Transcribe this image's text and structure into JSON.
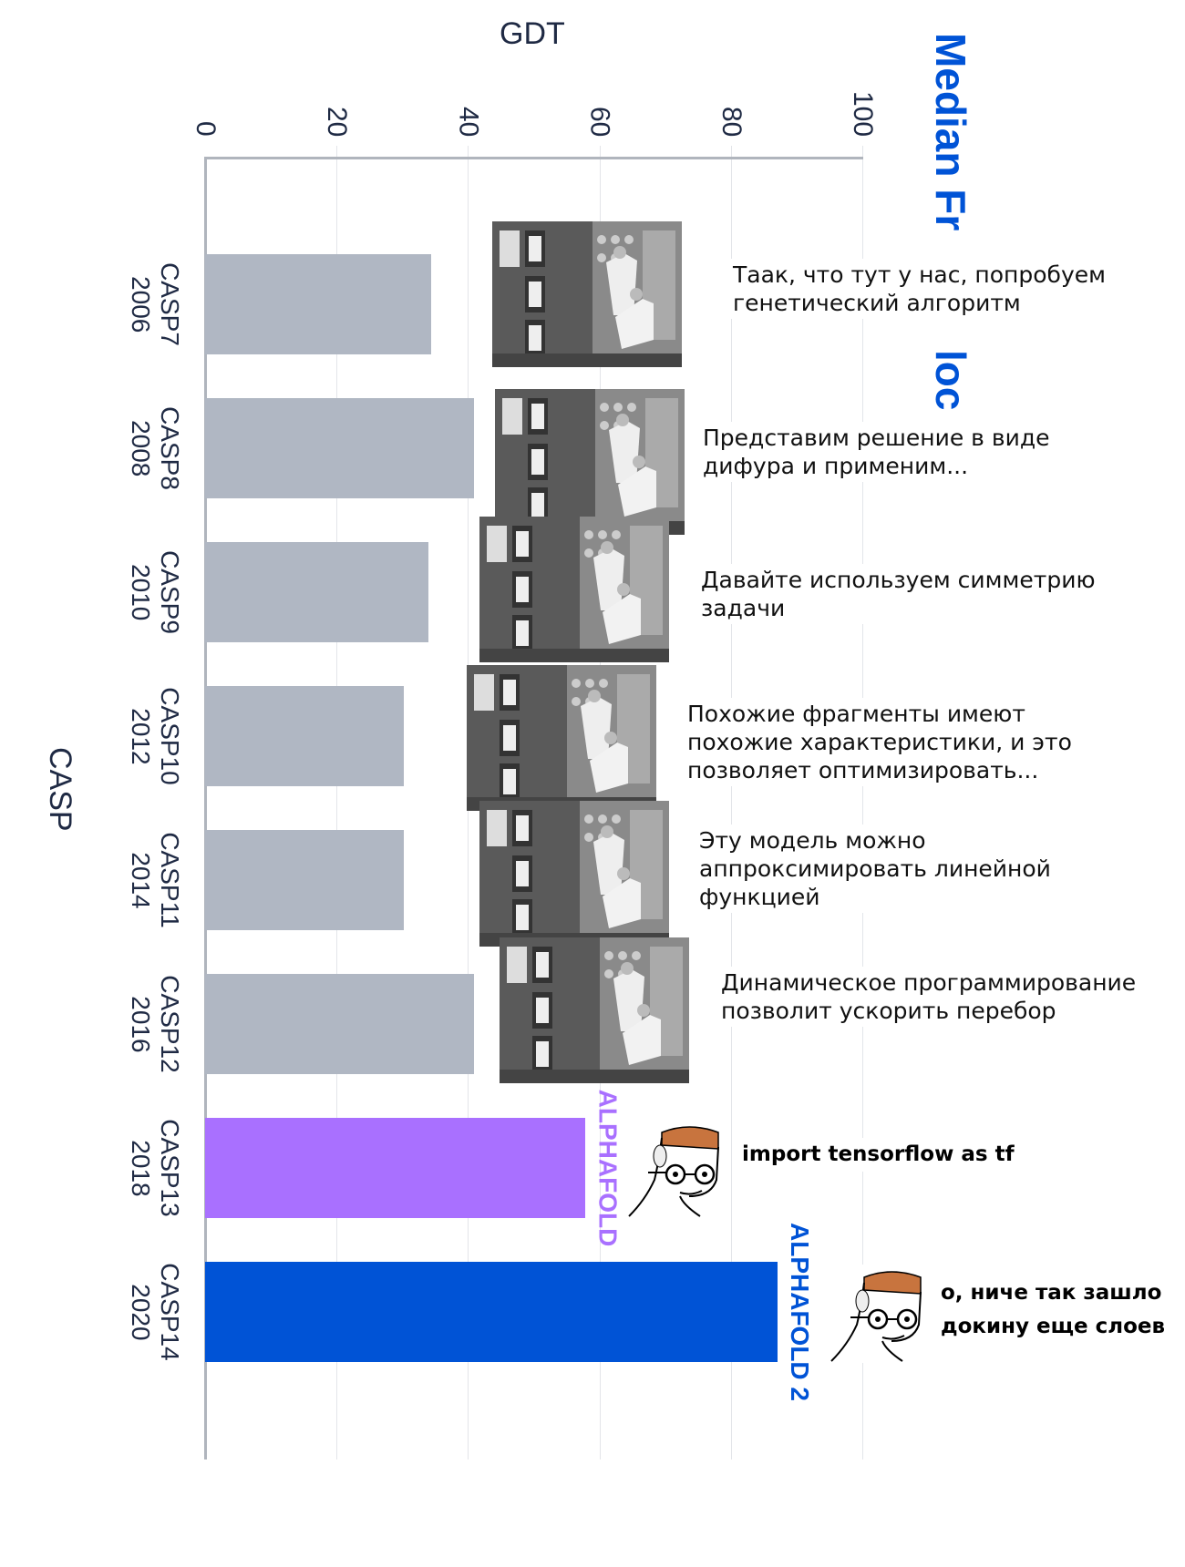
{
  "chart_data": {
    "type": "bar",
    "orientation": "horizontal",
    "title_fragments": [
      "Median Fr",
      "loc"
    ],
    "xlabel": "GDT",
    "ylabel": "CASP",
    "xlim": [
      0,
      100
    ],
    "xticks": [
      "0",
      "20",
      "40",
      "60",
      "80",
      "100"
    ],
    "grid": true,
    "categories": [
      {
        "name": "CASP7",
        "year": "2006"
      },
      {
        "name": "CASP8",
        "year": "2008"
      },
      {
        "name": "CASP9",
        "year": "2010"
      },
      {
        "name": "CASP10",
        "year": "2012"
      },
      {
        "name": "CASP11",
        "year": "2014"
      },
      {
        "name": "CASP12",
        "year": "2016"
      },
      {
        "name": "CASP13",
        "year": "2018"
      },
      {
        "name": "CASP14",
        "year": "2020"
      }
    ],
    "values": [
      34.4,
      40.9,
      34.0,
      30.2,
      30.2,
      40.9,
      57.9,
      87.1
    ],
    "bar_colors": [
      "#b0b7c3",
      "#b0b7c3",
      "#b0b7c3",
      "#b0b7c3",
      "#b0b7c3",
      "#b0b7c3",
      "#a970ff",
      "#0053d6"
    ],
    "bar_labels": [
      {
        "index": 6,
        "text": "ALPHAFOLD",
        "color": "#a970ff"
      },
      {
        "index": 7,
        "text": "ALPHAFOLD 2",
        "color": "#0053d6"
      }
    ],
    "title_color": "#0053d6"
  },
  "captions": [
    {
      "lines": [
        "Таак, что тут у нас, попробуем",
        "генетический алгоритм"
      ]
    },
    {
      "lines": [
        "Представим решение в виде",
        "дифура и применим..."
      ]
    },
    {
      "lines": [
        "Давайте используем симметрию",
        "задачи"
      ]
    },
    {
      "lines": [
        "Похожие фрагменты имеют",
        "похожие характеристики, и это",
        "позволяет оптимизировать..."
      ]
    },
    {
      "lines": [
        "Эту модель можно",
        "аппроксимировать линейной",
        "функцией"
      ]
    },
    {
      "lines": [
        "Динамическое программирование",
        "позволит ускорить перебор"
      ]
    }
  ],
  "meme_captions": [
    {
      "lines": [
        "import tensorflow as tf"
      ]
    },
    {
      "lines": [
        "о, ниче так зашло",
        "докину еще слоев"
      ]
    }
  ]
}
